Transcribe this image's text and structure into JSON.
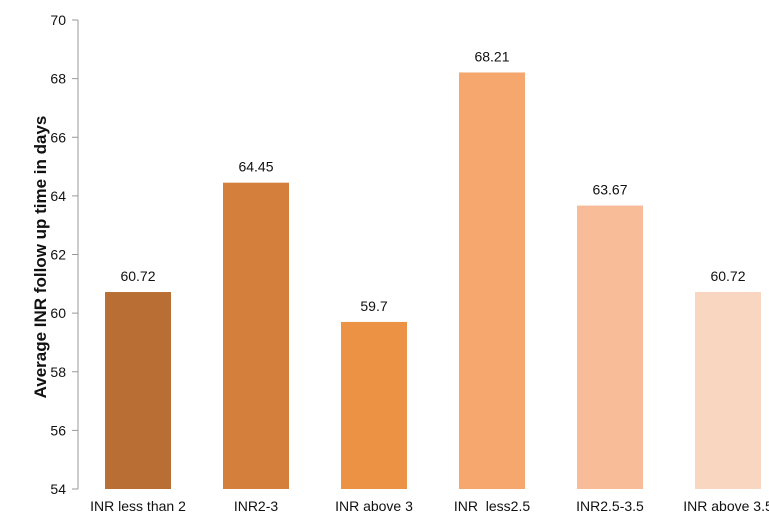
{
  "chart_data": {
    "type": "bar",
    "title": "",
    "xlabel": "",
    "ylabel": "Average INR follow up time in  days",
    "ylim": [
      54,
      70
    ],
    "yticks": [
      54,
      56,
      58,
      60,
      62,
      64,
      66,
      68,
      70
    ],
    "categories": [
      "INR less than 2",
      "INR2-3",
      "INR above 3",
      "INR  less2.5",
      "INR2.5-3.5",
      "INR above 3.5"
    ],
    "values": [
      60.72,
      64.45,
      59.7,
      68.21,
      63.67,
      60.72
    ],
    "data_labels": [
      "60.72",
      "64.45",
      "59.7",
      "68.21",
      "63.67",
      "60.72"
    ],
    "colors": [
      "#b96f33",
      "#d47f3c",
      "#ec9245",
      "#f5a76d",
      "#f8bc98",
      "#f9d6c0"
    ],
    "grid": false,
    "legend": "none"
  }
}
